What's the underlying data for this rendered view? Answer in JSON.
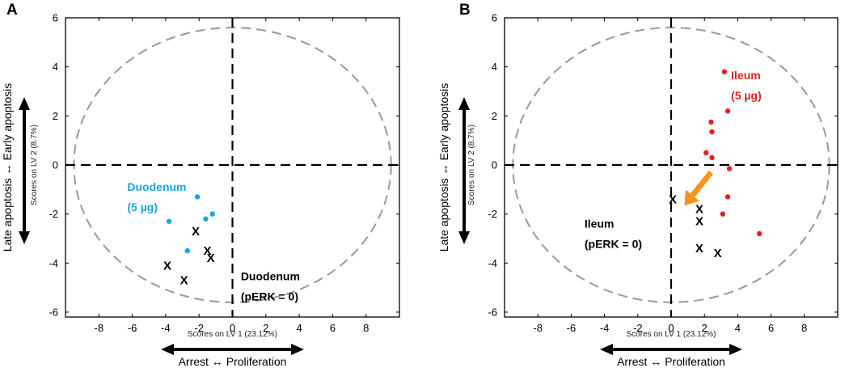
{
  "colors": {
    "duodenum": "#1aa5e0",
    "ileum": "#e32020",
    "pERK_marker": "#000000",
    "ellipse": "#999999",
    "arrow": "#f7941d"
  },
  "y_axis_ticks_label": "Scores on LV 2 (8.7%)",
  "x_axis_ticks_label": "Scores on LV 1 (23.12%)",
  "y_arrow_label": "Late apoptosis ↔ Early apoptosis",
  "x_arrow_label": "Arrest ↔ Proliferation",
  "chart_data": [
    {
      "panel": "A",
      "type": "scatter",
      "xlabel": "Scores on LV 1 (23.12%)",
      "ylabel": "Scores on LV 2 (8.7%)",
      "xlim": [
        -10,
        10
      ],
      "ylim": [
        -6.2,
        6
      ],
      "xticks": [
        -8,
        -6,
        -4,
        -2,
        0,
        2,
        4,
        6,
        8
      ],
      "yticks": [
        -6,
        -4,
        -2,
        0,
        2,
        4,
        6
      ],
      "ellipse": {
        "cx": 0,
        "cy": 0,
        "rx": 9.5,
        "ry": 5.6
      },
      "series": [
        {
          "name": "Duodenum (5 µg)",
          "marker": "dot",
          "color": "#1aa5e0",
          "x": [
            -2.1,
            -3.8,
            -1.6,
            -1.2,
            -2.7
          ],
          "y": [
            -1.3,
            -2.3,
            -2.2,
            -2.0,
            -3.5
          ]
        },
        {
          "name": "Duodenum (pERK = 0)",
          "marker": "x",
          "color": "#000000",
          "x": [
            -2.2,
            -1.5,
            -1.3,
            -3.9,
            -2.9
          ],
          "y": [
            -2.7,
            -3.5,
            -3.8,
            -4.1,
            -4.7
          ]
        }
      ],
      "annotations": [
        {
          "text_lines": [
            "Duodenum",
            "(5 µg)"
          ],
          "color": "#1aa5e0"
        },
        {
          "text_lines": [
            "Duodenum",
            "(pERK = 0)"
          ],
          "color": "#000000"
        }
      ]
    },
    {
      "panel": "B",
      "type": "scatter",
      "xlabel": "Scores on LV 1 (23.12%)",
      "ylabel": "Scores on LV 2 (8.7%)",
      "xlim": [
        -10,
        10
      ],
      "ylim": [
        -6.2,
        6
      ],
      "xticks": [
        -8,
        -6,
        -4,
        -2,
        0,
        2,
        4,
        6,
        8
      ],
      "yticks": [
        -6,
        -4,
        -2,
        0,
        2,
        4,
        6
      ],
      "ellipse": {
        "cx": 0,
        "cy": 0,
        "rx": 9.5,
        "ry": 5.6
      },
      "series": [
        {
          "name": "Ileum (5 µg)",
          "marker": "dot",
          "color": "#e32020",
          "x": [
            3.2,
            3.4,
            2.4,
            2.45,
            2.1,
            2.45,
            3.5,
            3.4,
            3.1,
            5.3
          ],
          "y": [
            3.8,
            2.2,
            1.75,
            1.35,
            0.5,
            0.3,
            -0.15,
            -1.3,
            -2.0,
            -2.8
          ]
        },
        {
          "name": "Ileum (pERK = 0)",
          "marker": "x",
          "color": "#000000",
          "x": [
            0.1,
            1.7,
            1.7,
            1.7,
            2.8
          ],
          "y": [
            -1.4,
            -1.8,
            -2.3,
            -3.4,
            -3.6
          ]
        }
      ],
      "arrow": {
        "from": [
          2.4,
          -0.3
        ],
        "to": [
          0.8,
          -1.65
        ],
        "color": "#f7941d"
      },
      "annotations": [
        {
          "text_lines": [
            "Ileum",
            "(5 µg)"
          ],
          "color": "#e32020"
        },
        {
          "text_lines": [
            "Ileum",
            "(pERK = 0)"
          ],
          "color": "#000000"
        }
      ]
    }
  ],
  "panel_labels": [
    "A",
    "B"
  ]
}
